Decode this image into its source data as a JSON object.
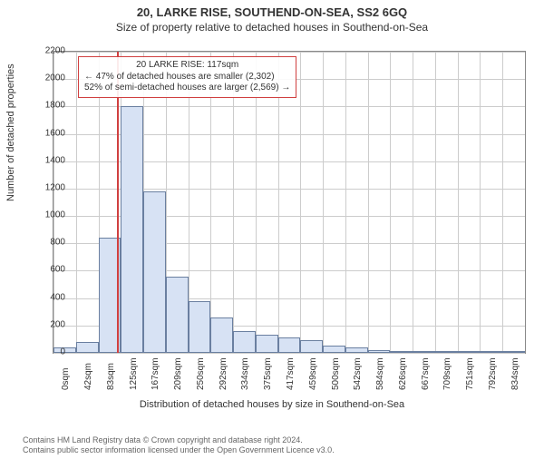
{
  "title_main": "20, LARKE RISE, SOUTHEND-ON-SEA, SS2 6GQ",
  "title_sub": "Size of property relative to detached houses in Southend-on-Sea",
  "histogram": {
    "type": "histogram",
    "xlabel": "Distribution of detached houses by size in Southend-on-Sea",
    "ylabel": "Number of detached properties",
    "ylim": [
      0,
      2200
    ],
    "ytick_step": 200,
    "xticks": [
      "0sqm",
      "42sqm",
      "83sqm",
      "125sqm",
      "167sqm",
      "209sqm",
      "250sqm",
      "292sqm",
      "334sqm",
      "375sqm",
      "417sqm",
      "459sqm",
      "500sqm",
      "542sqm",
      "584sqm",
      "626sqm",
      "667sqm",
      "709sqm",
      "751sqm",
      "792sqm",
      "834sqm"
    ],
    "values": [
      40,
      80,
      840,
      1800,
      1180,
      560,
      380,
      260,
      160,
      130,
      110,
      90,
      50,
      40,
      20,
      15,
      12,
      10,
      8,
      6,
      5
    ],
    "bar_fill": "#d7e2f4",
    "bar_border": "#6a7fa0",
    "grid_color": "#cccccc",
    "axis_color": "#888888",
    "background": "#ffffff",
    "marker": {
      "value": 117,
      "x_max": 875,
      "color": "#d04040",
      "annotation_border": "#d04040",
      "lines": [
        "20 LARKE RISE: 117sqm",
        "← 47% of detached houses are smaller (2,302)",
        "52% of semi-detached houses are larger (2,569) →"
      ]
    }
  },
  "footer_line1": "Contains HM Land Registry data © Crown copyright and database right 2024.",
  "footer_line2": "Contains public sector information licensed under the Open Government Licence v3.0."
}
